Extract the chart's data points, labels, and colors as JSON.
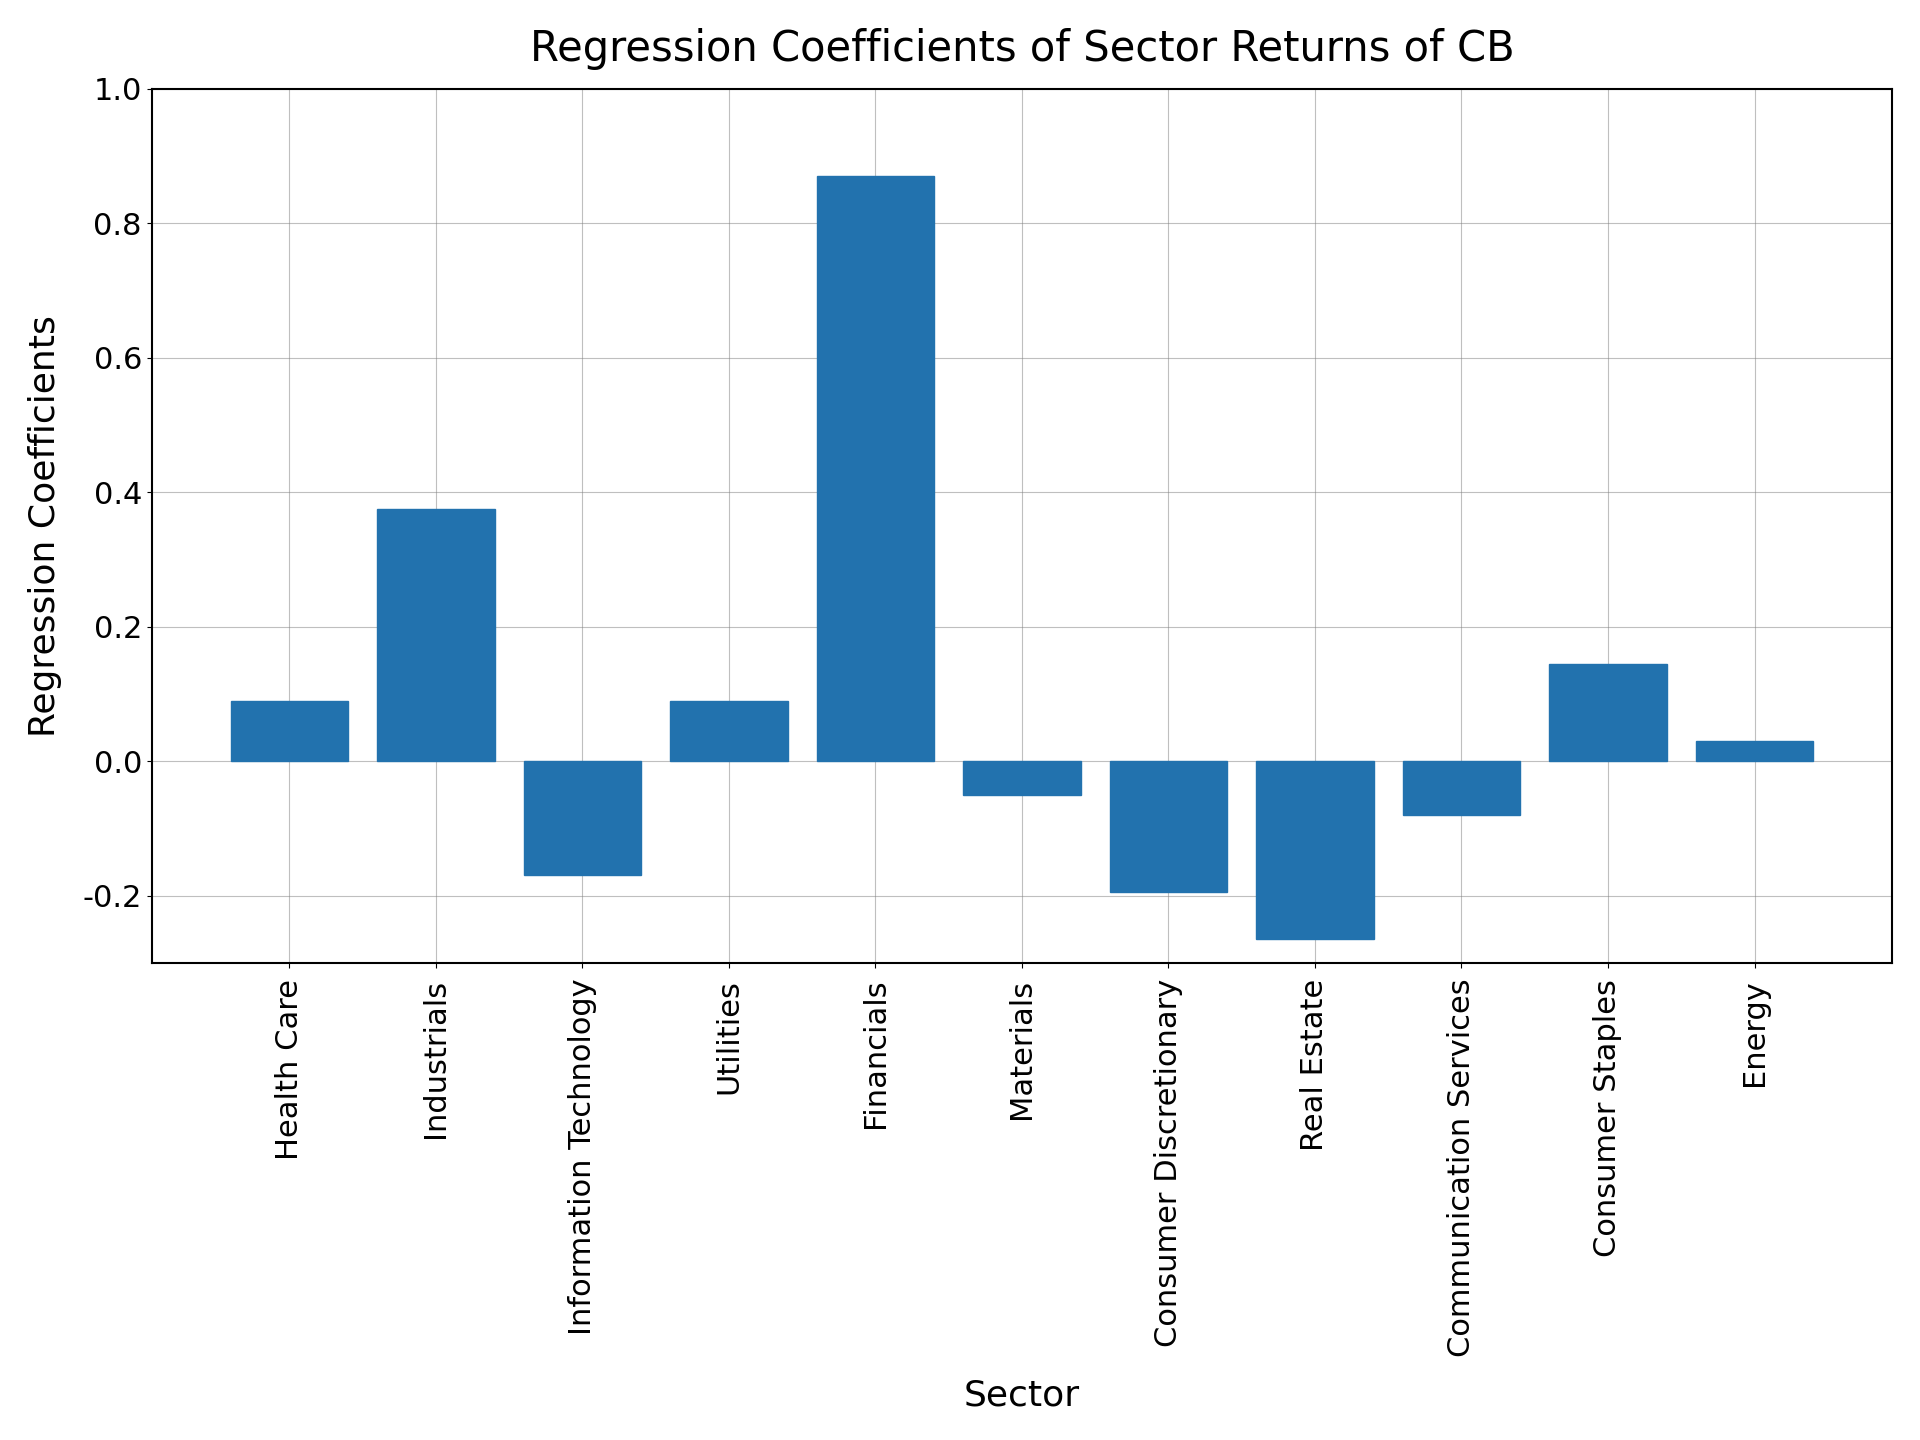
{
  "title": "Regression Coefficients of Sector Returns of CB",
  "xlabel": "Sector",
  "ylabel": "Regression Coefficients",
  "categories": [
    "Health Care",
    "Industrials",
    "Information Technology",
    "Utilities",
    "Financials",
    "Materials",
    "Consumer Discretionary",
    "Real Estate",
    "Communication Services",
    "Consumer Staples",
    "Energy"
  ],
  "values": [
    0.09,
    0.375,
    -0.17,
    0.09,
    0.87,
    -0.05,
    -0.195,
    -0.265,
    -0.08,
    0.145,
    0.03
  ],
  "bar_color": "#2272ae",
  "ylim": [
    -0.3,
    1.0
  ],
  "title_fontsize": 30,
  "label_fontsize": 26,
  "tick_fontsize": 22,
  "background_color": "#ffffff"
}
